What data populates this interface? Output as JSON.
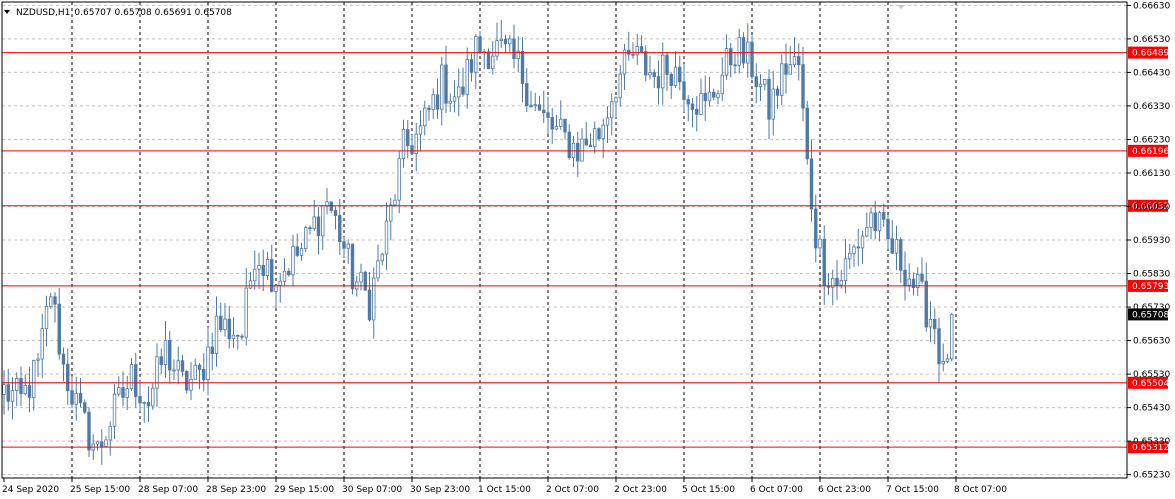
{
  "chart_data": {
    "type": "candlestick",
    "header": {
      "symbol": "NZDUSD,H1",
      "values": "0.65707 0.65708 0.65691 0.65708"
    },
    "price_axis": {
      "ylim": [
        0.6522,
        0.6664
      ],
      "ticks": [
        "0.66630",
        "0.66530",
        "0.66430",
        "0.66330",
        "0.66230",
        "0.66130",
        "0.66030",
        "0.65930",
        "0.65830",
        "0.65730",
        "0.65630",
        "0.65530",
        "0.65430",
        "0.65330",
        "0.65230"
      ]
    },
    "time_axis": {
      "labels": [
        "24 Sep 2020",
        "25 Sep 15:00",
        "28 Sep 07:00",
        "28 Sep 23:00",
        "29 Sep 15:00",
        "30 Sep 07:00",
        "30 Sep 23:00",
        "1 Oct 15:00",
        "2 Oct 07:00",
        "2 Oct 23:00",
        "5 Oct 15:00",
        "6 Oct 07:00",
        "6 Oct 23:00",
        "7 Oct 15:00",
        "8 Oct 07:00"
      ],
      "bars_per_label": 16
    },
    "levels": [
      {
        "price": 0.66489,
        "label": "0.66489"
      },
      {
        "price": 0.66196,
        "label": "0.66196"
      },
      {
        "price": 0.66032,
        "label": "0.66032"
      },
      {
        "price": 0.65793,
        "label": "0.65793"
      },
      {
        "price": 0.65504,
        "label": "0.65504"
      },
      {
        "price": 0.65312,
        "label": "0.65312"
      }
    ],
    "current_price": {
      "price": 0.65708,
      "label": "0.65708"
    },
    "waypoints": [
      [
        0,
        0.6548
      ],
      [
        4,
        0.6545
      ],
      [
        8,
        0.6555
      ],
      [
        11,
        0.6578
      ],
      [
        14,
        0.6555
      ],
      [
        18,
        0.654
      ],
      [
        22,
        0.653
      ],
      [
        26,
        0.6542
      ],
      [
        30,
        0.6552
      ],
      [
        34,
        0.6545
      ],
      [
        38,
        0.656
      ],
      [
        42,
        0.655
      ],
      [
        46,
        0.6552
      ],
      [
        50,
        0.6568
      ],
      [
        56,
        0.6565
      ],
      [
        59,
        0.659
      ],
      [
        64,
        0.6582
      ],
      [
        70,
        0.659
      ],
      [
        76,
        0.6605
      ],
      [
        79,
        0.6595
      ],
      [
        82,
        0.6582
      ],
      [
        86,
        0.6575
      ],
      [
        90,
        0.6595
      ],
      [
        94,
        0.662
      ],
      [
        98,
        0.6625
      ],
      [
        103,
        0.664
      ],
      [
        107,
        0.6635
      ],
      [
        111,
        0.665
      ],
      [
        116,
        0.665
      ],
      [
        121,
        0.6645
      ],
      [
        126,
        0.663
      ],
      [
        130,
        0.6625
      ],
      [
        135,
        0.662
      ],
      [
        140,
        0.6625
      ],
      [
        144,
        0.664
      ],
      [
        148,
        0.6648
      ],
      [
        153,
        0.6642
      ],
      [
        157,
        0.6645
      ],
      [
        161,
        0.6638
      ],
      [
        165,
        0.6632
      ],
      [
        168,
        0.664
      ],
      [
        172,
        0.665
      ],
      [
        176,
        0.6645
      ],
      [
        180,
        0.6632
      ],
      [
        184,
        0.6645
      ],
      [
        187,
        0.6645
      ],
      [
        189,
        0.6615
      ],
      [
        191,
        0.6595
      ],
      [
        193,
        0.6585
      ],
      [
        196,
        0.658
      ],
      [
        200,
        0.659
      ],
      [
        204,
        0.66
      ],
      [
        208,
        0.6592
      ],
      [
        212,
        0.6585
      ],
      [
        216,
        0.6575
      ],
      [
        219,
        0.6568
      ],
      [
        221,
        0.6552
      ],
      [
        222,
        0.656
      ],
      [
        223,
        0.657
      ]
    ],
    "bar_color": "#4f7aa8",
    "level_color": "#ff0000",
    "level_label_bg": "#ff0000",
    "current_label_bg": "#000000",
    "grid_color": "#c0c0c0",
    "grid": true
  }
}
